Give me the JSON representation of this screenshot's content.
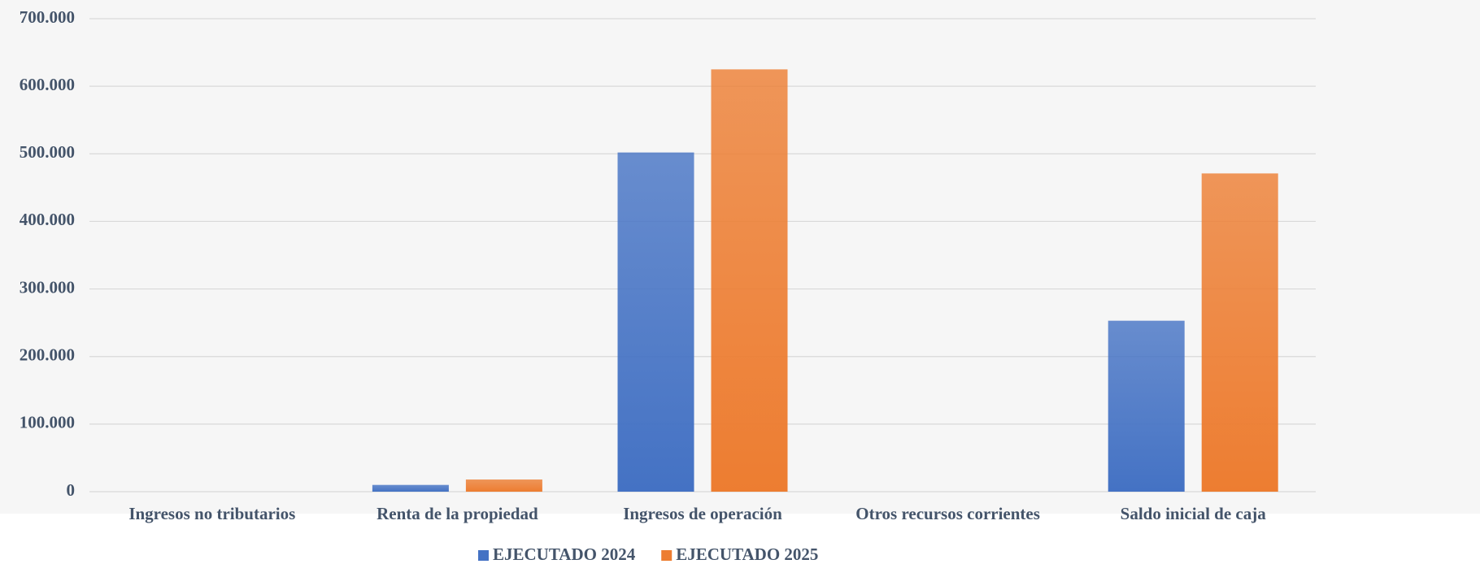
{
  "chart_data": {
    "type": "bar",
    "categories": [
      "Ingresos no tributarios",
      "Renta de la propiedad",
      "Ingresos de operación",
      "Otros recursos corrientes",
      "Saldo inicial de caja"
    ],
    "series": [
      {
        "name": "EJECUTADO 2024",
        "color": "#4472c4",
        "values": [
          0,
          10000,
          502000,
          0,
          253000
        ]
      },
      {
        "name": "EJECUTADO 2025",
        "color": "#ed7d31",
        "values": [
          0,
          18000,
          625000,
          0,
          471000
        ]
      }
    ],
    "ylim": [
      0,
      700000
    ],
    "yticks": [
      0,
      {
        "value": 100000,
        "label": "100.000"
      },
      {
        "value": 200000,
        "label": "200.000"
      },
      {
        "value": 300000,
        "label": "300.000"
      },
      {
        "value": 400000,
        "label": "400.000"
      },
      {
        "value": 500000,
        "label": "500.000"
      },
      {
        "value": 600000,
        "label": "600.000"
      },
      {
        "value": 700000,
        "label": "700.000"
      }
    ],
    "grid": true,
    "legend": "bottom"
  }
}
